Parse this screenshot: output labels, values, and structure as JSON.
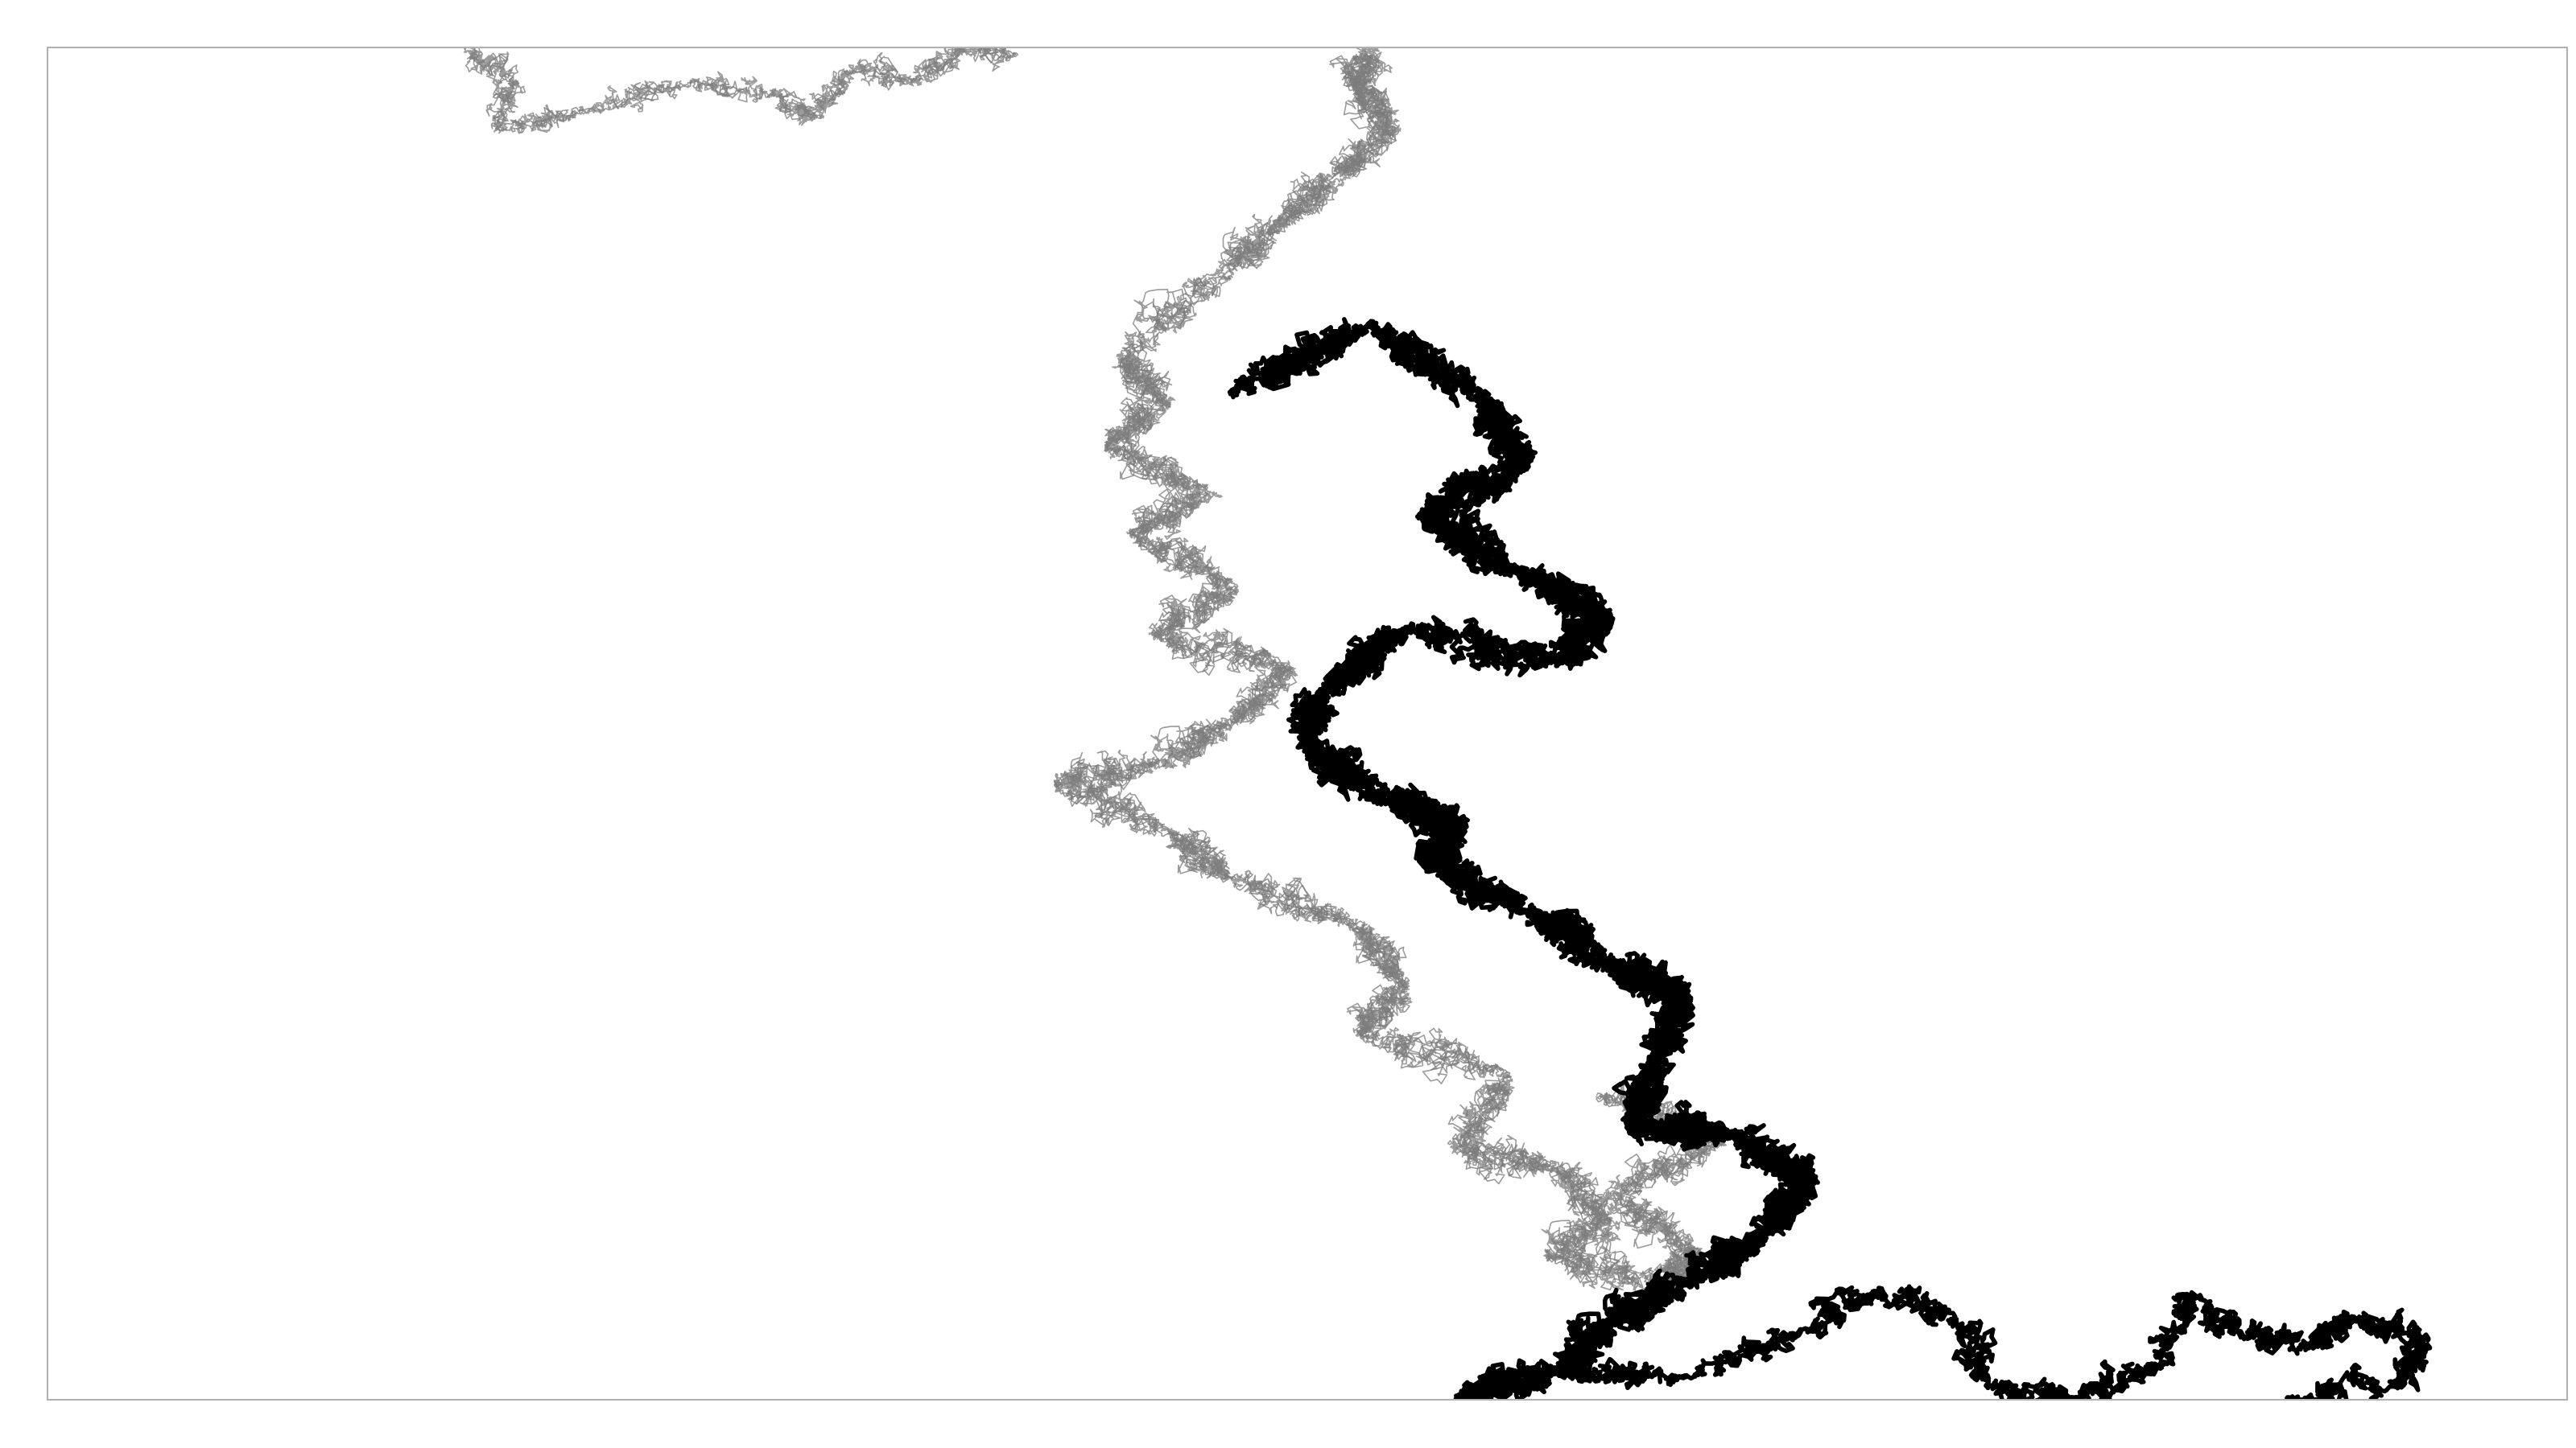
{
  "chart_data": {
    "type": "line",
    "title": "",
    "xlabel": "",
    "ylabel": "",
    "grid": false,
    "legend": "none",
    "axes_ticks": false,
    "xlim": [
      0,
      1000
    ],
    "ylim": [
      0,
      1000
    ],
    "series": [
      {
        "style": "thin-gray",
        "color": "#7a7a7a",
        "opacity": 0.75,
        "points": [
          [
            525,
            1000
          ],
          [
            520,
            970
          ],
          [
            535,
            940
          ],
          [
            510,
            905
          ],
          [
            490,
            870
          ],
          [
            470,
            835
          ],
          [
            428,
            770
          ],
          [
            445,
            740
          ],
          [
            420,
            705
          ],
          [
            460,
            670
          ],
          [
            430,
            640
          ],
          [
            470,
            600
          ],
          [
            440,
            565
          ],
          [
            495,
            540
          ],
          [
            470,
            500
          ],
          [
            440,
            470
          ],
          [
            400,
            455
          ],
          [
            445,
            420
          ],
          [
            470,
            385
          ],
          [
            520,
            350
          ],
          [
            540,
            305
          ],
          [
            520,
            270
          ],
          [
            580,
            240
          ],
          [
            560,
            185
          ],
          [
            600,
            170
          ],
          [
            620,
            130
          ],
          [
            595,
            105
          ],
          [
            640,
            85
          ],
          [
            655,
            110
          ],
          [
            620,
            150
          ],
          [
            665,
            190
          ],
          [
            615,
            225
          ]
        ]
      },
      {
        "style": "thin-gray-fragment",
        "color": "#7a7a7a",
        "opacity": 0.75,
        "points": [
          [
            165,
            1000
          ],
          [
            185,
            975
          ],
          [
            178,
            940
          ],
          [
            215,
            955
          ],
          [
            255,
            975
          ],
          [
            290,
            965
          ],
          [
            305,
            950
          ],
          [
            320,
            985
          ],
          [
            345,
            975
          ],
          [
            362,
            1000
          ],
          [
            385,
            995
          ]
        ]
      },
      {
        "style": "thick-black",
        "color": "#000000",
        "opacity": 1.0,
        "points": [
          [
            470,
            745
          ],
          [
            525,
            795
          ],
          [
            570,
            740
          ],
          [
            585,
            690
          ],
          [
            545,
            655
          ],
          [
            585,
            610
          ],
          [
            620,
            580
          ],
          [
            600,
            545
          ],
          [
            540,
            570
          ],
          [
            505,
            520
          ],
          [
            500,
            485
          ],
          [
            530,
            445
          ],
          [
            560,
            425
          ],
          [
            550,
            395
          ],
          [
            590,
            360
          ],
          [
            620,
            320
          ],
          [
            650,
            300
          ],
          [
            640,
            250
          ],
          [
            630,
            200
          ],
          [
            670,
            195
          ],
          [
            700,
            165
          ],
          [
            680,
            120
          ],
          [
            650,
            85
          ],
          [
            620,
            55
          ],
          [
            600,
            20
          ],
          [
            560,
            0
          ]
        ]
      },
      {
        "style": "thick-black-tail",
        "color": "#000000",
        "opacity": 1.0,
        "points": [
          [
            600,
            20
          ],
          [
            650,
            15
          ],
          [
            700,
            50
          ],
          [
            725,
            80
          ],
          [
            760,
            55
          ],
          [
            770,
            10
          ],
          [
            805,
            0
          ],
          [
            840,
            25
          ],
          [
            850,
            75
          ],
          [
            870,
            50
          ],
          [
            900,
            40
          ],
          [
            915,
            60
          ],
          [
            945,
            45
          ],
          [
            935,
            10
          ],
          [
            890,
            0
          ]
        ]
      }
    ]
  }
}
